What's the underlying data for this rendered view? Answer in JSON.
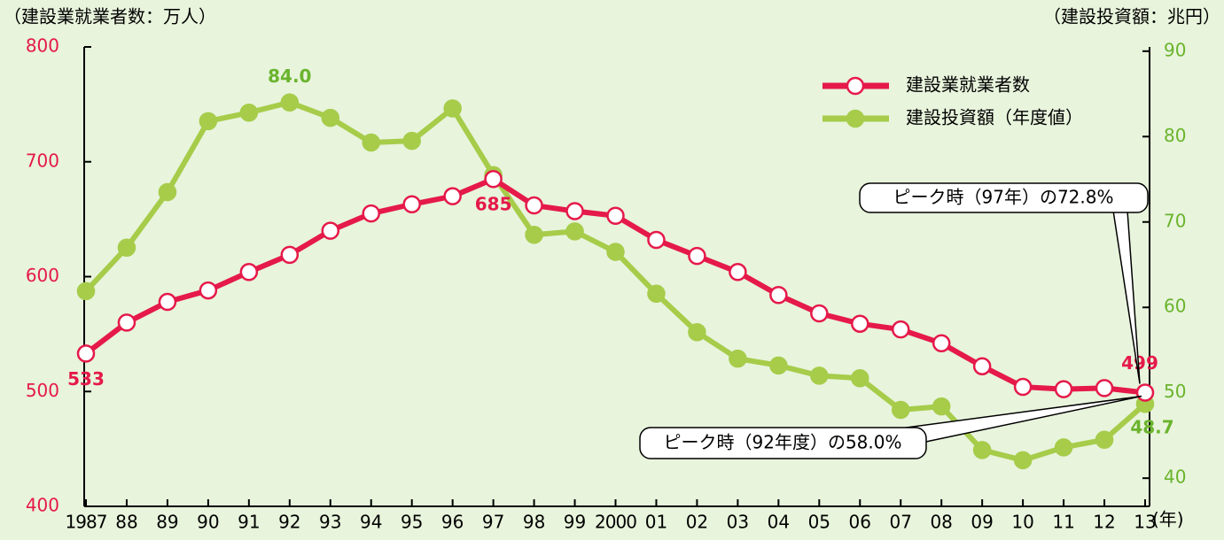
{
  "chart_data": {
    "type": "line",
    "y_axis_label": "（建設業就業者数：万人）",
    "y2_axis_label": "（建設投資額：兆円）",
    "x_axis_label": "(年)",
    "categories": [
      "1987",
      "88",
      "89",
      "90",
      "91",
      "92",
      "93",
      "94",
      "95",
      "96",
      "97",
      "98",
      "99",
      "2000",
      "01",
      "02",
      "03",
      "04",
      "05",
      "06",
      "07",
      "08",
      "09",
      "10",
      "11",
      "12",
      "13"
    ],
    "series": [
      {
        "name": "建設業就業者数",
        "color": "#e5194a",
        "marker": "open",
        "values": [
          533,
          560,
          578,
          588,
          604,
          619,
          640,
          655,
          663,
          670,
          685,
          662,
          657,
          653,
          632,
          618,
          604,
          584,
          568,
          559,
          554,
          542,
          522,
          504,
          502,
          503,
          499
        ],
        "value_labels": [
          "533",
          null,
          null,
          null,
          null,
          null,
          null,
          null,
          null,
          null,
          "685",
          null,
          null,
          null,
          null,
          null,
          null,
          null,
          null,
          null,
          null,
          null,
          null,
          null,
          null,
          null,
          "499"
        ]
      },
      {
        "name": "建設投資額（年度値）",
        "color": "#a6cc4a",
        "marker": "filled",
        "axis": "y2",
        "values": [
          61.9,
          67.0,
          73.5,
          81.8,
          82.8,
          84.0,
          82.2,
          79.3,
          79.5,
          83.3,
          75.5,
          68.5,
          68.9,
          66.5,
          61.6,
          57.1,
          54.0,
          53.2,
          52.0,
          51.7,
          48.0,
          48.4,
          43.3,
          42.1,
          43.6,
          44.5,
          48.7
        ],
        "value_labels": [
          null,
          null,
          null,
          null,
          null,
          "84.0",
          null,
          null,
          null,
          null,
          null,
          null,
          null,
          null,
          null,
          null,
          null,
          null,
          null,
          null,
          null,
          null,
          null,
          null,
          null,
          null,
          "48.7"
        ]
      }
    ],
    "ylim": [
      400,
      800
    ],
    "yticks": [
      400,
      500,
      600,
      700,
      800
    ],
    "y2lim": [
      36.7,
      90.5
    ],
    "y2ticks": [
      40,
      50,
      60,
      70,
      80,
      90
    ],
    "y_color": "#e5194a",
    "y2_color": "#6ab42d",
    "legend": "upper right",
    "annotations": [
      "ピーク時（97年）の72.8%",
      "ピーク時（92年度）の58.0%"
    ]
  }
}
